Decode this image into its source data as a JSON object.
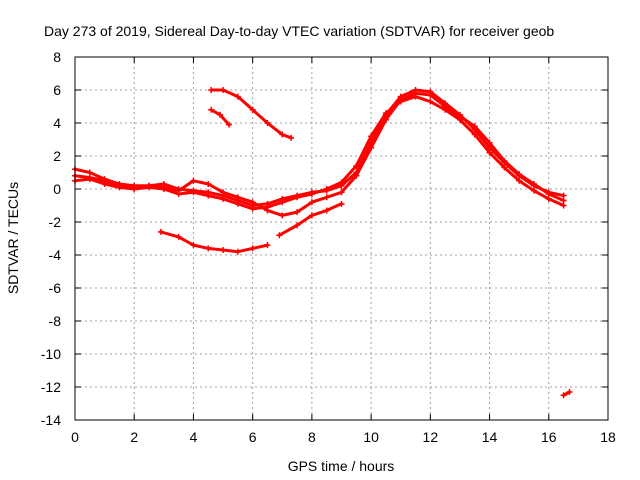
{
  "chart_data": {
    "type": "line",
    "title": "Day 273 of 2019, Sidereal Day-to-day VTEC variation (SDTVAR) for receiver geob",
    "xlabel": "GPS time / hours",
    "ylabel": "SDTVAR / TECUs",
    "xlim": [
      0,
      18
    ],
    "ylim": [
      -14,
      8
    ],
    "x_ticks": [
      0,
      2,
      4,
      6,
      8,
      10,
      12,
      14,
      16,
      18
    ],
    "y_ticks": [
      8,
      6,
      4,
      2,
      0,
      -2,
      -4,
      -6,
      -8,
      -10,
      -12,
      -14
    ],
    "grid": true,
    "color": "#ff0000",
    "series": [
      {
        "name": "track-a",
        "x": [
          0.0,
          0.5,
          1.0,
          1.5,
          2.0,
          2.5,
          3.0,
          3.5,
          4.0,
          4.5,
          5.0,
          5.5,
          6.0,
          6.5,
          7.0,
          7.5,
          8.0,
          8.5,
          9.0,
          9.5,
          10.0,
          10.5,
          11.0,
          11.5,
          12.0,
          12.5,
          13.0,
          13.5,
          14.0,
          14.5,
          15.0,
          15.5,
          16.0,
          16.5
        ],
        "y": [
          1.2,
          1.0,
          0.6,
          0.3,
          0.2,
          0.2,
          0.3,
          0.0,
          -0.1,
          -0.2,
          -0.4,
          -0.7,
          -1.0,
          -0.9,
          -0.6,
          -0.4,
          -0.2,
          -0.1,
          0.2,
          1.0,
          2.8,
          4.5,
          5.6,
          6.0,
          5.9,
          5.2,
          4.5,
          3.6,
          2.5,
          1.6,
          0.8,
          0.2,
          -0.2,
          -0.4
        ]
      },
      {
        "name": "track-b",
        "x": [
          0.0,
          0.5,
          1.0,
          1.5,
          2.0,
          2.5,
          3.0,
          3.5,
          4.0,
          4.5,
          5.0,
          5.5,
          6.0,
          6.5,
          7.0,
          7.5,
          8.0,
          8.5,
          9.0,
          9.5,
          10.0,
          10.5,
          11.0,
          11.5,
          12.0,
          12.5,
          13.0,
          13.5,
          14.0,
          14.5,
          15.0,
          15.5,
          16.0,
          16.5
        ],
        "y": [
          0.5,
          0.6,
          0.3,
          0.1,
          0.0,
          0.1,
          0.0,
          -0.3,
          -0.2,
          -0.4,
          -0.6,
          -0.9,
          -1.2,
          -1.1,
          -0.8,
          -0.5,
          -0.3,
          0.0,
          0.4,
          1.4,
          3.2,
          4.6,
          5.3,
          5.6,
          5.3,
          4.8,
          4.2,
          3.3,
          2.2,
          1.3,
          0.5,
          -0.1,
          -0.6,
          -1.0
        ]
      },
      {
        "name": "track-c",
        "x": [
          0.0,
          0.5,
          1.0,
          1.5,
          2.0,
          2.5,
          3.0,
          3.5,
          4.0,
          4.5,
          5.0,
          5.5,
          6.0,
          6.5,
          7.0,
          7.5,
          8.0,
          8.5,
          9.0,
          9.5,
          10.0,
          10.5,
          11.0,
          11.5,
          12.0,
          12.5,
          13.0,
          13.5,
          14.0,
          14.5,
          15.0,
          15.5,
          16.0,
          16.5
        ],
        "y": [
          0.8,
          0.7,
          0.5,
          0.2,
          0.1,
          0.2,
          0.1,
          -0.1,
          0.5,
          0.3,
          -0.2,
          -0.5,
          -0.8,
          -1.3,
          -1.6,
          -1.4,
          -0.8,
          -0.5,
          -0.2,
          0.8,
          2.5,
          4.2,
          5.4,
          5.8,
          5.7,
          5.0,
          4.4,
          3.8,
          2.8,
          1.7,
          0.9,
          0.3,
          -0.3,
          -0.7
        ]
      },
      {
        "name": "upper-segment-a",
        "x": [
          4.6,
          5.0,
          5.5,
          6.0,
          6.5,
          7.0,
          7.3
        ],
        "y": [
          6.0,
          6.0,
          5.6,
          4.8,
          4.0,
          3.3,
          3.1
        ]
      },
      {
        "name": "upper-segment-b",
        "x": [
          4.6,
          4.9,
          5.2
        ],
        "y": [
          4.8,
          4.5,
          3.9
        ]
      },
      {
        "name": "lower-segment",
        "x": [
          2.9,
          3.5,
          4.0,
          4.5,
          5.0,
          5.5,
          6.0,
          6.5
        ],
        "y": [
          -2.6,
          -2.9,
          -3.4,
          -3.6,
          -3.7,
          -3.8,
          -3.6,
          -3.4
        ]
      },
      {
        "name": "rising-segment",
        "x": [
          6.9,
          7.5,
          8.0,
          8.5,
          9.0
        ],
        "y": [
          -2.8,
          -2.2,
          -1.6,
          -1.3,
          -0.9
        ]
      },
      {
        "name": "outlier",
        "x": [
          16.5,
          16.7
        ],
        "y": [
          -12.5,
          -12.3
        ]
      }
    ]
  }
}
